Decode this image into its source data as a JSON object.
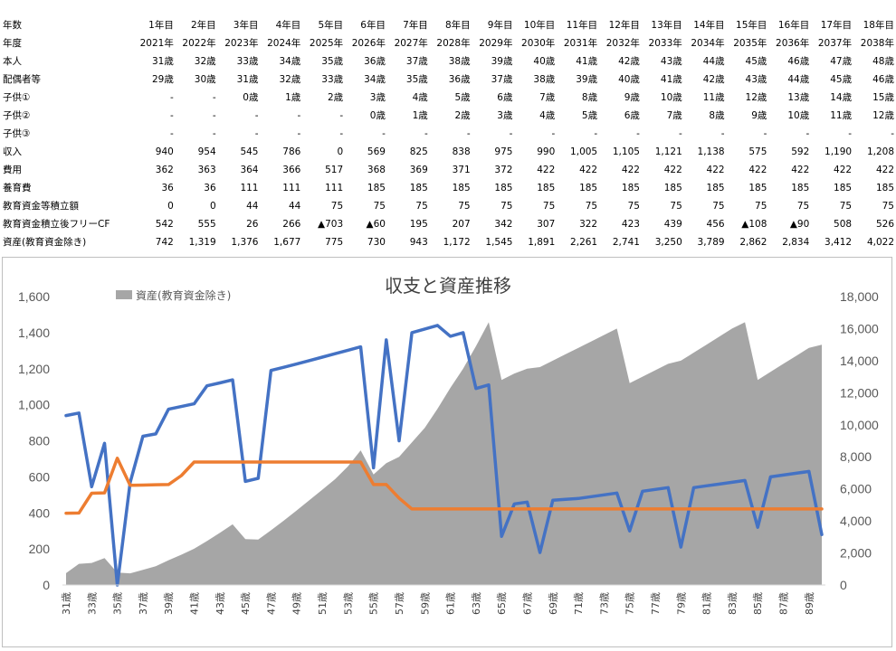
{
  "table": {
    "rows": [
      {
        "label": "年数",
        "values": [
          "1年目",
          "2年目",
          "3年目",
          "4年目",
          "5年目",
          "6年目",
          "7年目",
          "8年目",
          "9年目",
          "10年目",
          "11年目",
          "12年目",
          "13年目",
          "14年目",
          "15年目",
          "16年目",
          "17年目",
          "18年目"
        ]
      },
      {
        "label": "年度",
        "values": [
          "2021年",
          "2022年",
          "2023年",
          "2024年",
          "2025年",
          "2026年",
          "2027年",
          "2028年",
          "2029年",
          "2030年",
          "2031年",
          "2032年",
          "2033年",
          "2034年",
          "2035年",
          "2036年",
          "2037年",
          "2038年"
        ]
      },
      {
        "label": "本人",
        "values": [
          "31歳",
          "32歳",
          "33歳",
          "34歳",
          "35歳",
          "36歳",
          "37歳",
          "38歳",
          "39歳",
          "40歳",
          "41歳",
          "42歳",
          "43歳",
          "44歳",
          "45歳",
          "46歳",
          "47歳",
          "48歳"
        ]
      },
      {
        "label": "配偶者等",
        "values": [
          "29歳",
          "30歳",
          "31歳",
          "32歳",
          "33歳",
          "34歳",
          "35歳",
          "36歳",
          "37歳",
          "38歳",
          "39歳",
          "40歳",
          "41歳",
          "42歳",
          "43歳",
          "44歳",
          "45歳",
          "46歳"
        ]
      },
      {
        "label": "子供①",
        "values": [
          "-",
          "-",
          "0歳",
          "1歳",
          "2歳",
          "3歳",
          "4歳",
          "5歳",
          "6歳",
          "7歳",
          "8歳",
          "9歳",
          "10歳",
          "11歳",
          "12歳",
          "13歳",
          "14歳",
          "15歳"
        ]
      },
      {
        "label": "子供②",
        "values": [
          "-",
          "-",
          "-",
          "-",
          "-",
          "0歳",
          "1歳",
          "2歳",
          "3歳",
          "4歳",
          "5歳",
          "6歳",
          "7歳",
          "8歳",
          "9歳",
          "10歳",
          "11歳",
          "12歳"
        ]
      },
      {
        "label": "子供③",
        "values": [
          "-",
          "-",
          "-",
          "-",
          "-",
          "-",
          "-",
          "-",
          "-",
          "-",
          "-",
          "-",
          "-",
          "-",
          "-",
          "-",
          "-",
          "-"
        ]
      },
      {
        "label": "収入",
        "values": [
          "940",
          "954",
          "545",
          "786",
          "0",
          "569",
          "825",
          "838",
          "975",
          "990",
          "1,005",
          "1,105",
          "1,121",
          "1,138",
          "575",
          "592",
          "1,190",
          "1,208"
        ]
      },
      {
        "label": "費用",
        "values": [
          "362",
          "363",
          "364",
          "366",
          "517",
          "368",
          "369",
          "371",
          "372",
          "422",
          "422",
          "422",
          "422",
          "422",
          "422",
          "422",
          "422",
          "422"
        ]
      },
      {
        "label": "養育費",
        "values": [
          "36",
          "36",
          "111",
          "111",
          "111",
          "185",
          "185",
          "185",
          "185",
          "185",
          "185",
          "185",
          "185",
          "185",
          "185",
          "185",
          "185",
          "185"
        ]
      },
      {
        "label": "教育資金等積立額",
        "values": [
          "0",
          "0",
          "44",
          "44",
          "75",
          "75",
          "75",
          "75",
          "75",
          "75",
          "75",
          "75",
          "75",
          "75",
          "75",
          "75",
          "75",
          "75"
        ]
      },
      {
        "label": "教育資金積立後フリーCF",
        "values": [
          "542",
          "555",
          "26",
          "266",
          "▲703",
          "▲60",
          "195",
          "207",
          "342",
          "307",
          "322",
          "423",
          "439",
          "456",
          "▲108",
          "▲90",
          "508",
          "526"
        ]
      },
      {
        "label": "資産(教育資金除き)",
        "values": [
          "742",
          "1,319",
          "1,376",
          "1,677",
          "775",
          "730",
          "943",
          "1,172",
          "1,545",
          "1,891",
          "2,261",
          "2,741",
          "3,250",
          "3,789",
          "2,862",
          "2,834",
          "3,412",
          "4,022"
        ]
      }
    ]
  },
  "chart_data": {
    "type": "line",
    "title": "収支と資産推移",
    "x_labels": [
      "31歳",
      "33歳",
      "35歳",
      "37歳",
      "39歳",
      "41歳",
      "43歳",
      "45歳",
      "47歳",
      "49歳",
      "51歳",
      "53歳",
      "55歳",
      "57歳",
      "59歳",
      "61歳",
      "63歳",
      "65歳",
      "67歳",
      "69歳",
      "71歳",
      "73歳",
      "75歳",
      "77歳",
      "79歳",
      "81歳",
      "83歳",
      "85歳",
      "87歳",
      "89歳"
    ],
    "x": [
      31,
      32,
      33,
      34,
      35,
      36,
      37,
      38,
      39,
      40,
      41,
      42,
      43,
      44,
      45,
      46,
      47,
      48,
      49,
      50,
      51,
      52,
      53,
      54,
      55,
      56,
      57,
      58,
      59,
      60,
      61,
      62,
      63,
      64,
      65,
      66,
      67,
      68,
      69,
      70,
      71,
      72,
      73,
      74,
      75,
      76,
      77,
      78,
      79,
      80,
      81,
      82,
      83,
      84,
      85,
      86,
      87,
      88,
      89,
      90
    ],
    "y_left": {
      "min": 0,
      "max": 1600,
      "ticks": [
        "0",
        "200",
        "400",
        "600",
        "800",
        "1,000",
        "1,200",
        "1,400",
        "1,600"
      ]
    },
    "y_right": {
      "min": 0,
      "max": 18000,
      "ticks": [
        "0",
        "2,000",
        "4,000",
        "6,000",
        "8,000",
        "10,000",
        "12,000",
        "14,000",
        "16,000",
        "18,000"
      ]
    },
    "grid": false,
    "legend_position": "top-left",
    "series": [
      {
        "name": "資産(教育資金除き)",
        "chart_type": "area",
        "axis": "right",
        "color": "#a6a6a6",
        "values": [
          742,
          1319,
          1376,
          1677,
          775,
          730,
          943,
          1172,
          1545,
          1891,
          2261,
          2741,
          3250,
          3789,
          2862,
          2834,
          3412,
          4022,
          4650,
          5300,
          5950,
          6600,
          7400,
          8400,
          6900,
          7600,
          8000,
          8900,
          9800,
          11000,
          12300,
          13500,
          14900,
          16400,
          12800,
          13200,
          13500,
          13600,
          14000,
          14400,
          14800,
          15200,
          15600,
          16000,
          12600,
          13000,
          13400,
          13800,
          14000,
          14500,
          15000,
          15500,
          16000,
          16400,
          12800,
          13300,
          13800,
          14300,
          14800,
          15000
        ]
      },
      {
        "name": "",
        "chart_type": "line",
        "axis": "left",
        "color": "#4472c4",
        "values": [
          940,
          954,
          545,
          786,
          0,
          569,
          825,
          838,
          975,
          990,
          1005,
          1105,
          1121,
          1138,
          575,
          592,
          1190,
          1208,
          1226,
          1245,
          1264,
          1283,
          1302,
          1321,
          650,
          1360,
          800,
          1400,
          1420,
          1440,
          1380,
          1400,
          1090,
          1110,
          270,
          450,
          460,
          180,
          470,
          475,
          480,
          490,
          500,
          510,
          300,
          520,
          530,
          540,
          210,
          540,
          550,
          560,
          570,
          580,
          320,
          600,
          610,
          620,
          630,
          280
        ]
      },
      {
        "name": "",
        "chart_type": "line",
        "axis": "left",
        "color": "#ed7d31",
        "values": [
          398,
          399,
          509,
          511,
          703,
          553,
          554,
          556,
          557,
          607,
          682,
          682,
          682,
          682,
          682,
          682,
          682,
          682,
          682,
          682,
          682,
          682,
          682,
          682,
          557,
          557,
          482,
          422,
          422,
          422,
          422,
          422,
          422,
          422,
          422,
          422,
          422,
          422,
          422,
          422,
          422,
          422,
          422,
          422,
          422,
          422,
          422,
          422,
          422,
          422,
          422,
          422,
          422,
          422,
          422,
          422,
          422,
          422,
          422,
          422
        ]
      }
    ]
  }
}
